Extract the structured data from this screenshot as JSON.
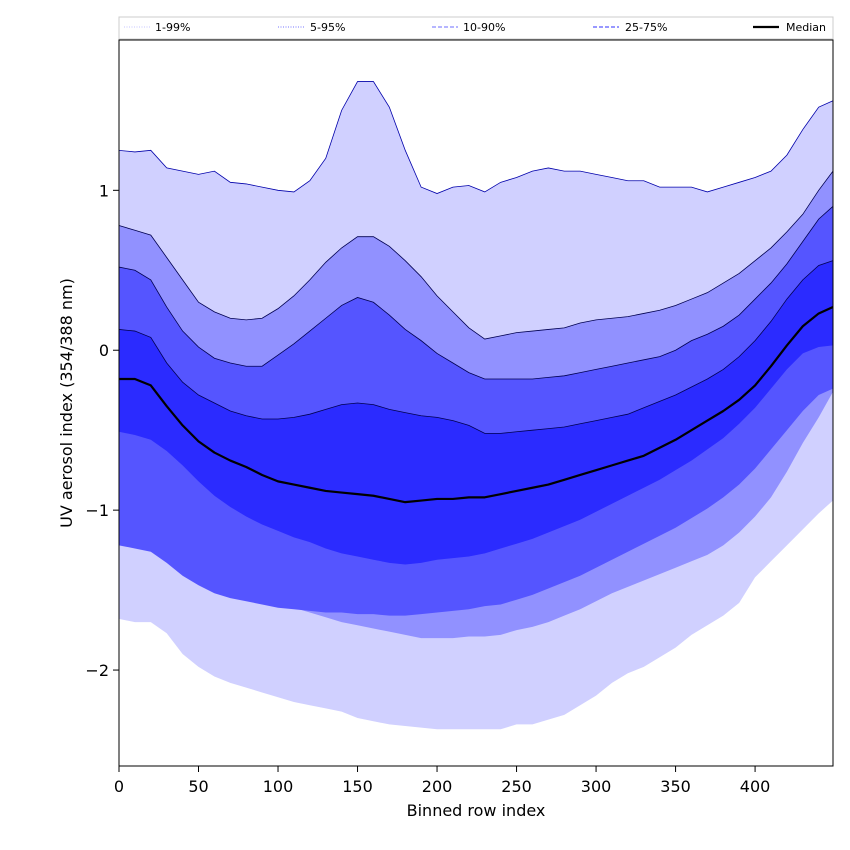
{
  "chart_data": {
    "type": "area",
    "xlabel": "Binned row index",
    "ylabel": "UV aerosol index (354/388 nm)",
    "xlim": [
      0,
      449
    ],
    "ylim": [
      -2.6,
      1.94
    ],
    "xticks": [
      0,
      50,
      100,
      150,
      200,
      250,
      300,
      350,
      400
    ],
    "yticks": [
      -2,
      -1,
      0,
      1
    ],
    "ytick_labels": [
      "−2",
      "−1",
      "0",
      "1"
    ],
    "legend_position": "top (horizontal strip)",
    "x": [
      0,
      10,
      20,
      30,
      40,
      50,
      60,
      70,
      80,
      90,
      100,
      110,
      120,
      130,
      140,
      150,
      160,
      170,
      180,
      190,
      200,
      210,
      220,
      230,
      240,
      250,
      260,
      270,
      280,
      290,
      300,
      310,
      320,
      330,
      340,
      350,
      360,
      370,
      380,
      390,
      400,
      410,
      420,
      430,
      440,
      449
    ],
    "bands": [
      {
        "name": "1-99%",
        "fill": "#d0d0ff",
        "upper": [
          1.25,
          1.24,
          1.25,
          1.14,
          1.12,
          1.1,
          1.12,
          1.05,
          1.04,
          1.02,
          1.0,
          0.99,
          1.06,
          1.2,
          1.5,
          1.68,
          1.68,
          1.52,
          1.25,
          1.02,
          0.98,
          1.02,
          1.03,
          0.99,
          1.05,
          1.08,
          1.12,
          1.14,
          1.12,
          1.12,
          1.1,
          1.08,
          1.06,
          1.06,
          1.02,
          1.02,
          1.02,
          0.99,
          1.02,
          1.05,
          1.08,
          1.12,
          1.22,
          1.38,
          1.52,
          1.56
        ],
        "lower": [
          -1.68,
          -1.7,
          -1.7,
          -1.77,
          -1.9,
          -1.98,
          -2.04,
          -2.08,
          -2.11,
          -2.14,
          -2.17,
          -2.2,
          -2.22,
          -2.24,
          -2.26,
          -2.3,
          -2.32,
          -2.34,
          -2.35,
          -2.36,
          -2.37,
          -2.37,
          -2.37,
          -2.37,
          -2.37,
          -2.34,
          -2.34,
          -2.31,
          -2.28,
          -2.22,
          -2.16,
          -2.08,
          -2.02,
          -1.98,
          -1.92,
          -1.86,
          -1.78,
          -1.72,
          -1.66,
          -1.58,
          -1.42,
          -1.32,
          -1.22,
          -1.12,
          -1.02,
          -0.94
        ]
      },
      {
        "name": "5-95%",
        "fill": "#9191ff",
        "upper": [
          0.78,
          0.75,
          0.72,
          0.58,
          0.44,
          0.3,
          0.24,
          0.2,
          0.19,
          0.2,
          0.26,
          0.34,
          0.44,
          0.55,
          0.64,
          0.71,
          0.71,
          0.65,
          0.56,
          0.46,
          0.34,
          0.24,
          0.14,
          0.07,
          0.09,
          0.11,
          0.12,
          0.13,
          0.14,
          0.17,
          0.19,
          0.2,
          0.21,
          0.23,
          0.25,
          0.28,
          0.32,
          0.36,
          0.42,
          0.48,
          0.56,
          0.64,
          0.74,
          0.85,
          1.0,
          1.12
        ],
        "lower": [
          -0.93,
          -0.95,
          -0.96,
          -1.1,
          -1.22,
          -1.33,
          -1.4,
          -1.45,
          -1.49,
          -1.53,
          -1.57,
          -1.61,
          -1.64,
          -1.67,
          -1.7,
          -1.72,
          -1.74,
          -1.76,
          -1.78,
          -1.8,
          -1.8,
          -1.8,
          -1.79,
          -1.79,
          -1.78,
          -1.75,
          -1.73,
          -1.7,
          -1.66,
          -1.62,
          -1.57,
          -1.52,
          -1.48,
          -1.44,
          -1.4,
          -1.36,
          -1.32,
          -1.28,
          -1.22,
          -1.14,
          -1.04,
          -0.92,
          -0.76,
          -0.58,
          -0.42,
          -0.26
        ]
      },
      {
        "name": "10-90%",
        "fill": "#5555ff",
        "upper": [
          0.52,
          0.5,
          0.44,
          0.27,
          0.12,
          0.02,
          -0.05,
          -0.08,
          -0.1,
          -0.1,
          -0.03,
          0.04,
          0.12,
          0.2,
          0.28,
          0.33,
          0.3,
          0.22,
          0.13,
          0.06,
          -0.02,
          -0.08,
          -0.14,
          -0.18,
          -0.18,
          -0.18,
          -0.18,
          -0.17,
          -0.16,
          -0.14,
          -0.12,
          -0.1,
          -0.08,
          -0.06,
          -0.04,
          0.0,
          0.06,
          0.1,
          0.15,
          0.22,
          0.32,
          0.42,
          0.54,
          0.68,
          0.82,
          0.9
        ],
        "lower": [
          -1.22,
          -1.24,
          -1.26,
          -1.33,
          -1.41,
          -1.47,
          -1.52,
          -1.55,
          -1.57,
          -1.59,
          -1.61,
          -1.62,
          -1.63,
          -1.64,
          -1.64,
          -1.65,
          -1.65,
          -1.66,
          -1.66,
          -1.65,
          -1.64,
          -1.63,
          -1.62,
          -1.6,
          -1.59,
          -1.56,
          -1.53,
          -1.49,
          -1.45,
          -1.41,
          -1.36,
          -1.31,
          -1.26,
          -1.21,
          -1.16,
          -1.11,
          -1.05,
          -0.99,
          -0.92,
          -0.84,
          -0.74,
          -0.62,
          -0.5,
          -0.38,
          -0.28,
          -0.24
        ]
      },
      {
        "name": "25-75%",
        "fill": "#2b2bff",
        "upper": [
          0.13,
          0.12,
          0.08,
          -0.08,
          -0.2,
          -0.28,
          -0.33,
          -0.38,
          -0.41,
          -0.43,
          -0.43,
          -0.42,
          -0.4,
          -0.37,
          -0.34,
          -0.33,
          -0.34,
          -0.37,
          -0.39,
          -0.41,
          -0.42,
          -0.44,
          -0.47,
          -0.52,
          -0.52,
          -0.51,
          -0.5,
          -0.49,
          -0.48,
          -0.46,
          -0.44,
          -0.42,
          -0.4,
          -0.36,
          -0.32,
          -0.28,
          -0.23,
          -0.18,
          -0.12,
          -0.04,
          0.06,
          0.18,
          0.32,
          0.44,
          0.53,
          0.56
        ],
        "lower": [
          -0.51,
          -0.53,
          -0.56,
          -0.63,
          -0.72,
          -0.82,
          -0.91,
          -0.98,
          -1.04,
          -1.09,
          -1.13,
          -1.17,
          -1.2,
          -1.24,
          -1.27,
          -1.29,
          -1.31,
          -1.33,
          -1.34,
          -1.33,
          -1.31,
          -1.3,
          -1.29,
          -1.27,
          -1.24,
          -1.21,
          -1.18,
          -1.14,
          -1.1,
          -1.06,
          -1.01,
          -0.96,
          -0.91,
          -0.86,
          -0.81,
          -0.75,
          -0.69,
          -0.62,
          -0.55,
          -0.46,
          -0.36,
          -0.24,
          -0.12,
          -0.02,
          0.02,
          0.03
        ]
      }
    ],
    "series": [
      {
        "name": "Median",
        "color": "#000000",
        "values": [
          -0.18,
          -0.18,
          -0.22,
          -0.35,
          -0.47,
          -0.57,
          -0.64,
          -0.69,
          -0.73,
          -0.78,
          -0.82,
          -0.84,
          -0.86,
          -0.88,
          -0.89,
          -0.9,
          -0.91,
          -0.93,
          -0.95,
          -0.94,
          -0.93,
          -0.93,
          -0.92,
          -0.92,
          -0.9,
          -0.88,
          -0.86,
          -0.84,
          -0.81,
          -0.78,
          -0.75,
          -0.72,
          -0.69,
          -0.66,
          -0.61,
          -0.56,
          -0.5,
          -0.44,
          -0.38,
          -0.31,
          -0.22,
          -0.1,
          0.03,
          0.15,
          0.23,
          0.27
        ]
      }
    ],
    "legend": [
      {
        "label": "1-99%",
        "style": "dotted",
        "color": "#d0d0ff"
      },
      {
        "label": "5-95%",
        "style": "dotted",
        "color": "#9191ff"
      },
      {
        "label": "10-90%",
        "style": "dashed",
        "color": "#8a8aff"
      },
      {
        "label": "25-75%",
        "style": "dashed",
        "color": "#5a5aff"
      },
      {
        "label": "Median",
        "style": "solid",
        "color": "#000000"
      }
    ]
  }
}
